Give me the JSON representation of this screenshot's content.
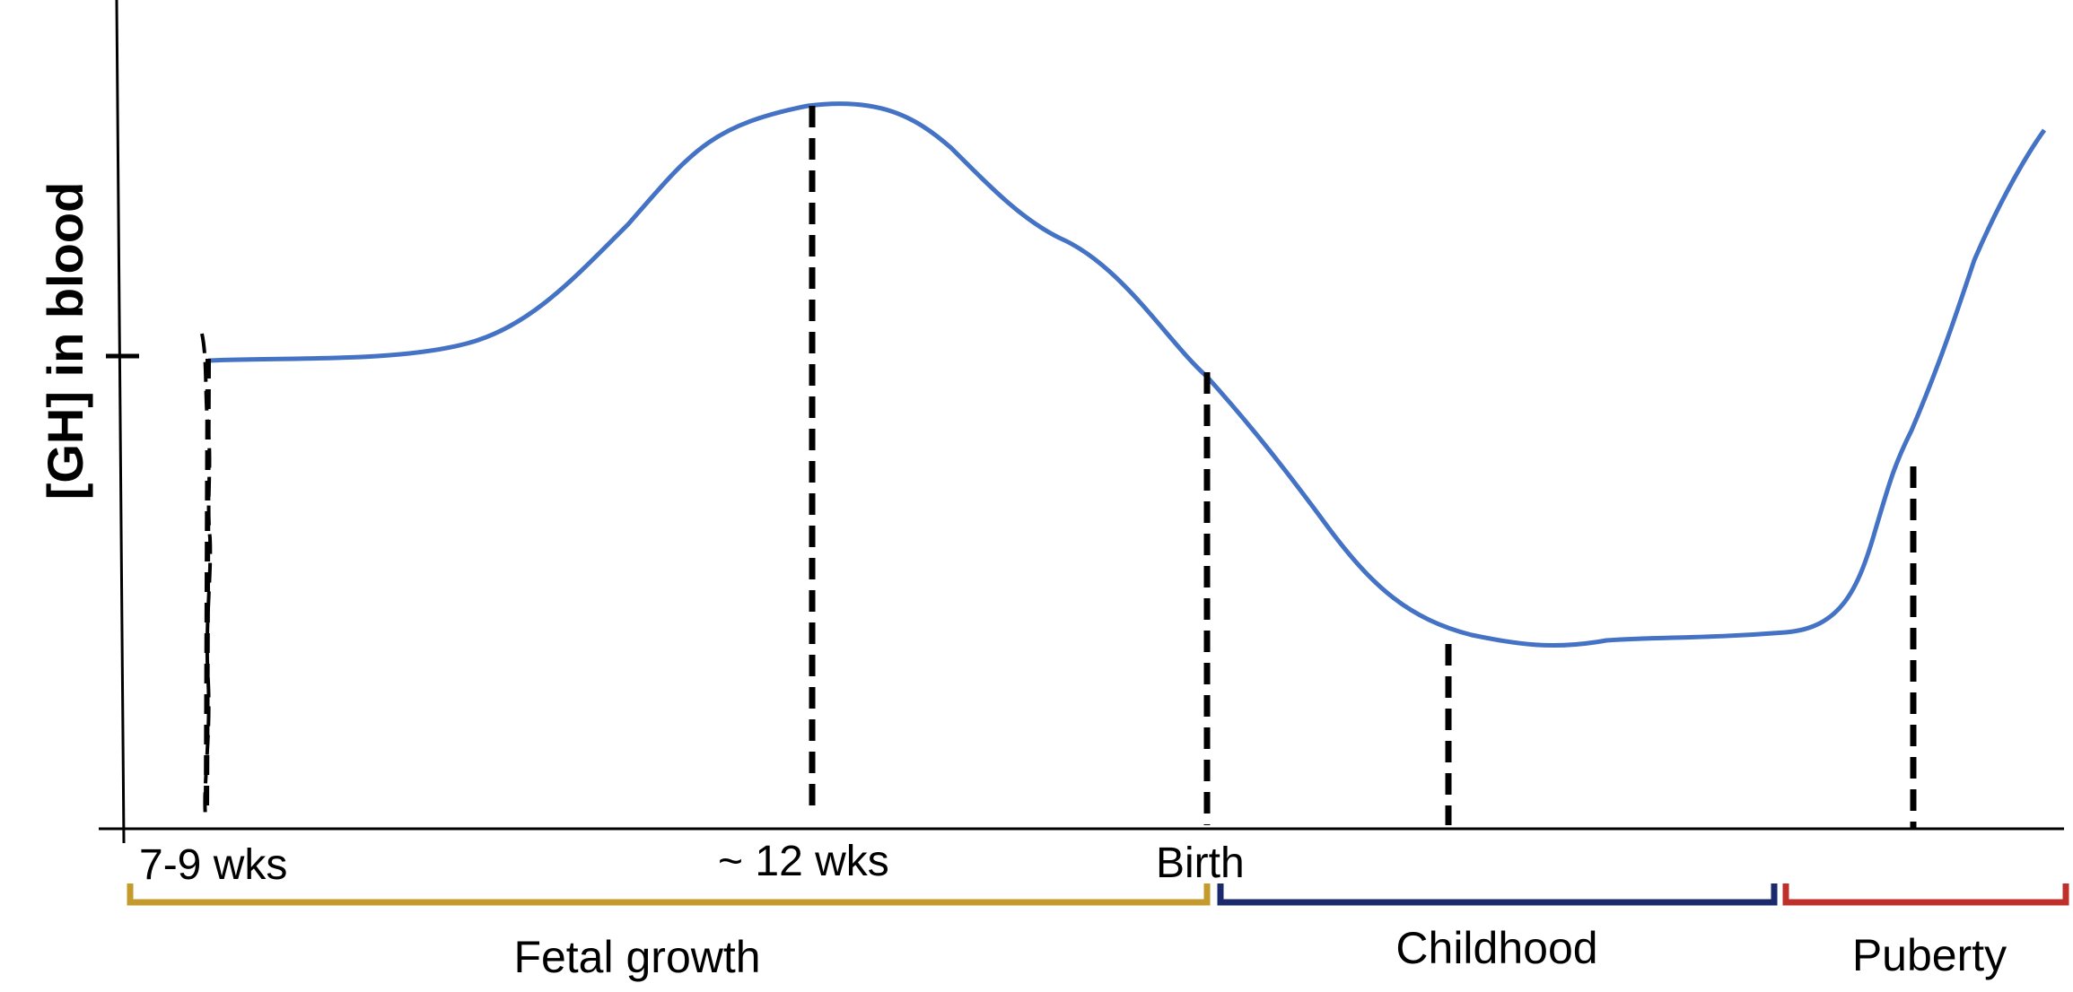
{
  "diagram": {
    "y_axis_label": "[GH] in blood",
    "timepoints": [
      {
        "label": "7-9 wks"
      },
      {
        "label": "~ 12 wks"
      },
      {
        "label": "Birth"
      }
    ],
    "phases": [
      {
        "label": "Fetal growth",
        "color": "#C49A2C"
      },
      {
        "label": "Childhood",
        "color": "#1A2A6C"
      },
      {
        "label": "Puberty",
        "color": "#C0302A"
      }
    ],
    "curve_color": "#4472C4",
    "dashed_marker_color": "#000000"
  }
}
